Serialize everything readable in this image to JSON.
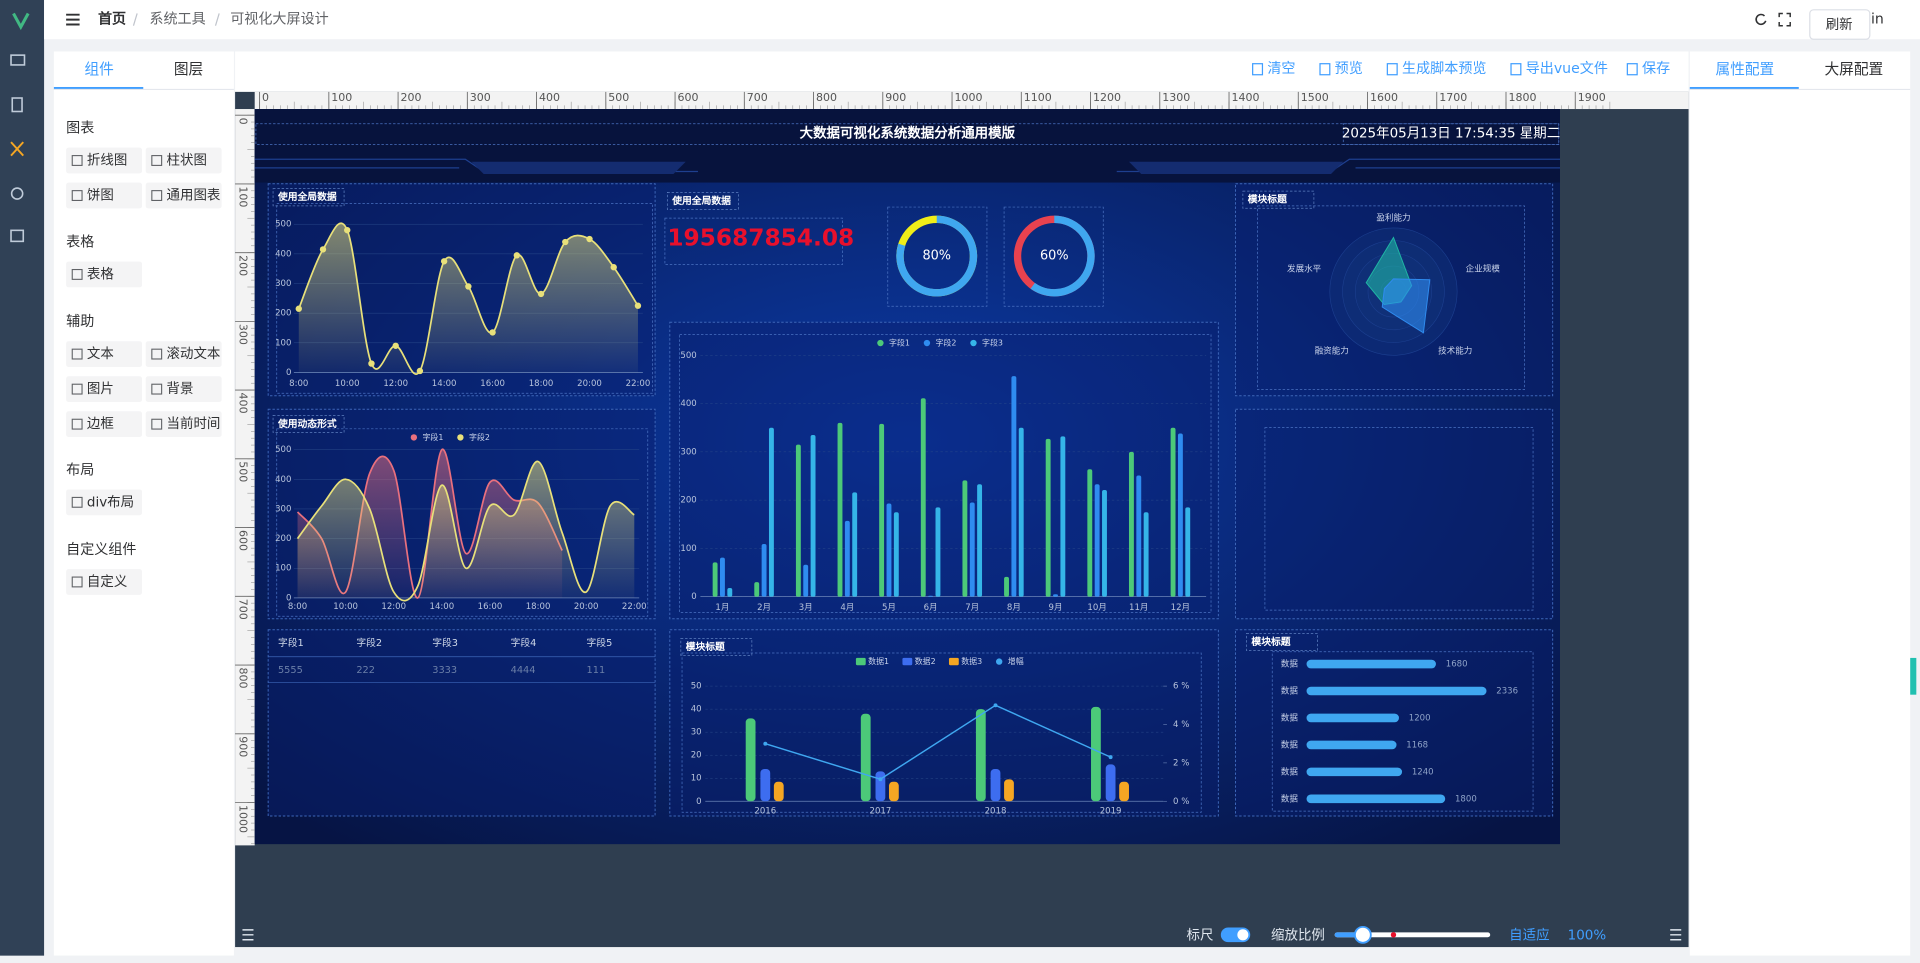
{
  "header": {
    "breadcrumb": [
      "首页",
      "系统工具",
      "可视化大屏设计"
    ],
    "tooltip": "刷新",
    "user": "in"
  },
  "left_panel": {
    "tabs": [
      "组件",
      "图层"
    ],
    "groups": [
      {
        "title": "图表",
        "items": [
          "折线图",
          "柱状图",
          "饼图",
          "通用图表"
        ]
      },
      {
        "title": "表格",
        "items": [
          "表格"
        ]
      },
      {
        "title": "辅助",
        "items": [
          "文本",
          "滚动文本",
          "图片",
          "背景",
          "边框",
          "当前时间"
        ]
      },
      {
        "title": "布局",
        "items": [
          "div布局"
        ]
      },
      {
        "title": "自定义组件",
        "items": [
          "自定义"
        ]
      }
    ]
  },
  "toolbar": [
    "清空",
    "预览",
    "生成脚本预览",
    "导出vue文件",
    "保存"
  ],
  "right_panel": {
    "tabs": [
      "属性配置",
      "大屏配置"
    ]
  },
  "ruler": {
    "x_ticks": [
      0,
      100,
      200,
      300,
      400,
      500,
      600,
      700,
      800,
      900,
      1000,
      1100,
      1200,
      1300,
      1400,
      1500,
      1600,
      1700,
      1800,
      1900
    ],
    "y_ticks": [
      0,
      100,
      200,
      300,
      400,
      500,
      600,
      700,
      800,
      900,
      1000
    ]
  },
  "screen": {
    "title": "大数据可视化系统数据分析通用模版",
    "datetime": "2025年05月13日 17:54:35 星期二"
  },
  "footer": {
    "ruler": "标尺",
    "scale": "缩放比例",
    "fit": "自适应",
    "zoom": "100%"
  },
  "chart_data": [
    {
      "type": "area",
      "title": "使用全局数据",
      "categories": [
        "8:00",
        null,
        "10:00",
        null,
        "12:00",
        null,
        "14:00",
        null,
        "16:00",
        null,
        "18:00",
        null,
        "20:00",
        null,
        "22:00"
      ],
      "values": [
        215,
        415,
        480,
        30,
        90,
        5,
        375,
        290,
        135,
        395,
        265,
        440,
        450,
        355,
        225
      ],
      "color": "#e8e07a",
      "ylim": [
        0,
        500
      ],
      "yticks": [
        0,
        100,
        200,
        300,
        400,
        500
      ]
    },
    {
      "type": "area",
      "title": "使用动态形式",
      "categories": [
        "8:00",
        null,
        "10:00",
        null,
        "12:00",
        null,
        "14:00",
        null,
        "16:00",
        null,
        "18:00",
        null,
        "20:00",
        null,
        "22:00"
      ],
      "series": [
        {
          "name": "字段1",
          "color": "#e9707e",
          "values": [
            290,
            200,
            20,
            420,
            430,
            0,
            500,
            150,
            390,
            330,
            320,
            160,
            null,
            null,
            null
          ]
        },
        {
          "name": "字段2",
          "color": "#e8e07a",
          "values": [
            200,
            310,
            400,
            300,
            20,
            40,
            380,
            100,
            310,
            280,
            460,
            220,
            20,
            310,
            280
          ]
        }
      ],
      "ylim": [
        0,
        500
      ],
      "yticks": [
        0,
        100,
        200,
        300,
        400,
        500
      ]
    },
    {
      "type": "table",
      "columns": [
        "字段1",
        "字段2",
        "字段3",
        "字段4",
        "字段5"
      ],
      "rows": [
        [
          5555,
          222,
          3333,
          4444,
          111
        ]
      ]
    },
    {
      "type": "number",
      "title": "使用全局数据",
      "value": 195687854.08,
      "color": "#e8102c"
    },
    {
      "type": "gauge",
      "values": [
        80
      ],
      "value_labels": [
        "80%"
      ],
      "ylim": [
        0,
        100
      ],
      "color": "#3fa7f0",
      "rest_color": "#f0ee18"
    },
    {
      "type": "gauge",
      "values": [
        60
      ],
      "value_labels": [
        "60%"
      ],
      "ylim": [
        0,
        100
      ],
      "color": "#3fa7f0",
      "rest_color": "#e8424f"
    },
    {
      "type": "bar",
      "categories": [
        "1月",
        "2月",
        "3月",
        "4月",
        "5月",
        "6月",
        "7月",
        "8月",
        "9月",
        "10月",
        "11月",
        "12月"
      ],
      "series": [
        {
          "name": "字段1",
          "color": "#4cc979",
          "values": [
            71,
            30,
            315,
            360,
            358,
            411,
            241,
            41,
            327,
            264,
            300,
            350
          ]
        },
        {
          "name": "字段2",
          "color": "#2f8cf0",
          "values": [
            81,
            109,
            66,
            157,
            193,
            2,
            195,
            457,
            5,
            233,
            251,
            338
          ]
        },
        {
          "name": "字段3",
          "color": "#35b5e8",
          "values": [
            18,
            350,
            335,
            216,
            175,
            185,
            233,
            350,
            332,
            221,
            175,
            185
          ]
        }
      ],
      "ylim": [
        0,
        500
      ],
      "yticks": [
        0,
        100,
        200,
        300,
        400,
        500
      ]
    },
    {
      "type": "radar",
      "title": "模块标题",
      "indicators": [
        "盈利能力",
        "企业规模",
        "技术能力",
        "融资能力",
        "发展水平"
      ],
      "rlim": [
        0,
        100
      ],
      "series": [
        {
          "color": "#1fb5a5",
          "values": [
            85,
            30,
            20,
            25,
            45
          ]
        },
        {
          "color": "#2f8cf0",
          "values": [
            20,
            60,
            80,
            30,
            15
          ]
        }
      ]
    },
    {
      "type": "combo",
      "title": "模块标题",
      "categories": [
        "2016",
        "2017",
        "2018",
        "2019"
      ],
      "series": [
        {
          "name": "数据1",
          "color": "#4cc979",
          "values": [
            36,
            38,
            40,
            41
          ]
        },
        {
          "name": "数据2",
          "color": "#3d6df0",
          "values": [
            14,
            13,
            14,
            16
          ]
        },
        {
          "name": "数据3",
          "color": "#f5a623",
          "values": [
            8.5,
            8.5,
            9.5,
            8.5
          ]
        },
        {
          "name": "增幅",
          "color": "#3fa7f0",
          "axis": "y2",
          "values": [
            3.0,
            1.15,
            5.0,
            2.3
          ]
        }
      ],
      "ylim": [
        0,
        50
      ],
      "yticks": [
        0,
        10,
        20,
        30,
        40,
        50
      ],
      "y2lim": [
        0,
        6
      ],
      "y2ticks": [
        {
          "value": 0,
          "label": "0 %"
        },
        {
          "value": 2,
          "label": "2 %"
        },
        {
          "value": 4,
          "label": "4 %"
        },
        {
          "value": 6,
          "label": "6 %"
        }
      ]
    },
    {
      "type": "hbar",
      "title": "模块标题",
      "categories": [
        "数据",
        "数据",
        "数据",
        "数据",
        "数据",
        "数据"
      ],
      "values": [
        1680,
        2336,
        1200,
        1168,
        1240,
        1800
      ],
      "color": "#3fa7f0",
      "xlim": [
        0,
        2400
      ]
    }
  ]
}
